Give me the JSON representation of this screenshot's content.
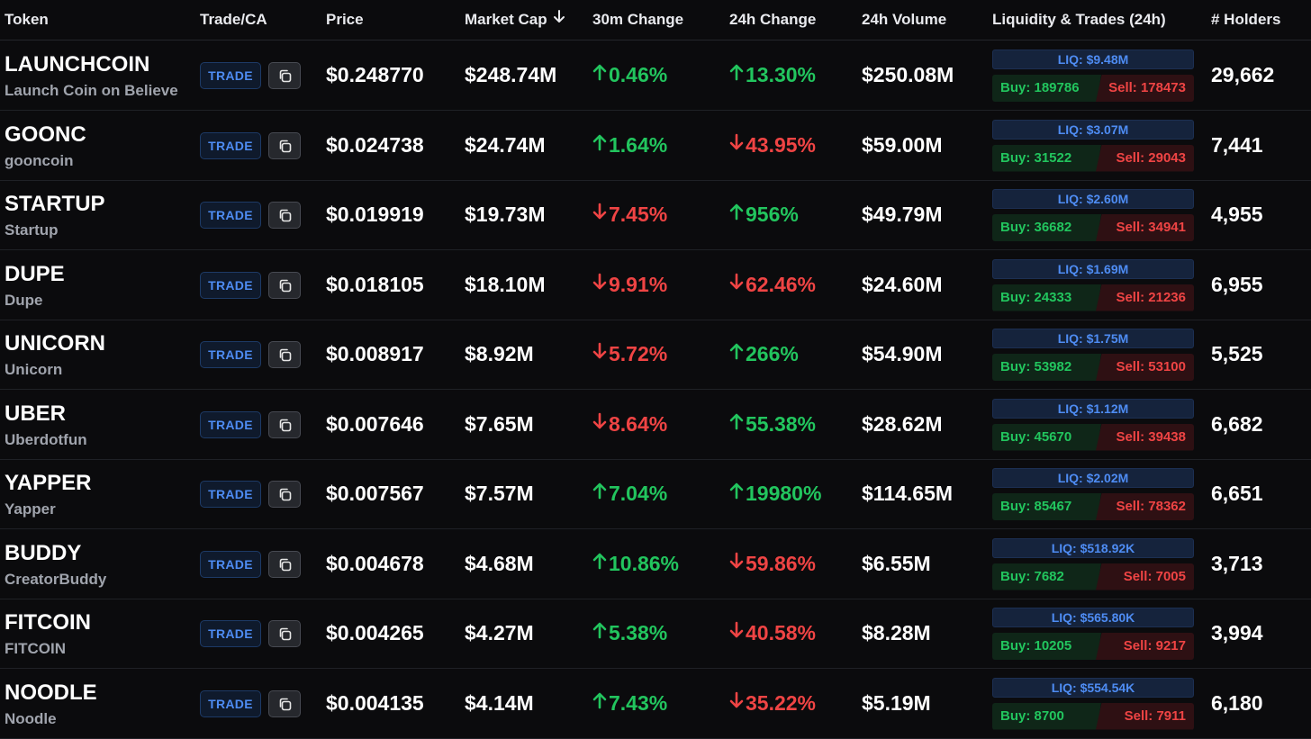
{
  "columns": {
    "token": "Token",
    "trade": "Trade/CA",
    "price": "Price",
    "mcap": "Market Cap",
    "c30": "30m Change",
    "c24": "24h Change",
    "vol": "24h Volume",
    "liq": "Liquidity & Trades (24h)",
    "holders": "# Holders"
  },
  "sort": {
    "column": "Market Cap",
    "direction": "descending"
  },
  "trade_label": "TRADE",
  "colors": {
    "up": "#22c55e",
    "down": "#ef4444",
    "accent": "#4e8cf3",
    "background": "#0b0b0d"
  },
  "rows": [
    {
      "name": "LAUNCHCOIN",
      "sub": "Launch Coin on Believe",
      "price": "$0.248770",
      "mcap": "$248.74M",
      "c30": "0.46%",
      "c30dir": "up",
      "c24": "13.30%",
      "c24dir": "up",
      "vol": "$250.08M",
      "liq": "LIQ: $9.48M",
      "buy": "Buy: 189786",
      "sell": "Sell: 178473",
      "holders": "29,662"
    },
    {
      "name": "GOONC",
      "sub": "gooncoin",
      "price": "$0.024738",
      "mcap": "$24.74M",
      "c30": "1.64%",
      "c30dir": "up",
      "c24": "43.95%",
      "c24dir": "down",
      "vol": "$59.00M",
      "liq": "LIQ: $3.07M",
      "buy": "Buy: 31522",
      "sell": "Sell: 29043",
      "holders": "7,441"
    },
    {
      "name": "STARTUP",
      "sub": "Startup",
      "price": "$0.019919",
      "mcap": "$19.73M",
      "c30": "7.45%",
      "c30dir": "down",
      "c24": "956%",
      "c24dir": "up",
      "vol": "$49.79M",
      "liq": "LIQ: $2.60M",
      "buy": "Buy: 36682",
      "sell": "Sell: 34941",
      "holders": "4,955"
    },
    {
      "name": "DUPE",
      "sub": "Dupe",
      "price": "$0.018105",
      "mcap": "$18.10M",
      "c30": "9.91%",
      "c30dir": "down",
      "c24": "62.46%",
      "c24dir": "down",
      "vol": "$24.60M",
      "liq": "LIQ: $1.69M",
      "buy": "Buy: 24333",
      "sell": "Sell: 21236",
      "holders": "6,955"
    },
    {
      "name": "UNICORN",
      "sub": "Unicorn",
      "price": "$0.008917",
      "mcap": "$8.92M",
      "c30": "5.72%",
      "c30dir": "down",
      "c24": "266%",
      "c24dir": "up",
      "vol": "$54.90M",
      "liq": "LIQ: $1.75M",
      "buy": "Buy: 53982",
      "sell": "Sell: 53100",
      "holders": "5,525"
    },
    {
      "name": "UBER",
      "sub": "Uberdotfun",
      "price": "$0.007646",
      "mcap": "$7.65M",
      "c30": "8.64%",
      "c30dir": "down",
      "c24": "55.38%",
      "c24dir": "up",
      "vol": "$28.62M",
      "liq": "LIQ: $1.12M",
      "buy": "Buy: 45670",
      "sell": "Sell: 39438",
      "holders": "6,682"
    },
    {
      "name": "YAPPER",
      "sub": "Yapper",
      "price": "$0.007567",
      "mcap": "$7.57M",
      "c30": "7.04%",
      "c30dir": "up",
      "c24": "19980%",
      "c24dir": "up",
      "vol": "$114.65M",
      "liq": "LIQ: $2.02M",
      "buy": "Buy: 85467",
      "sell": "Sell: 78362",
      "holders": "6,651"
    },
    {
      "name": "BUDDY",
      "sub": "CreatorBuddy",
      "price": "$0.004678",
      "mcap": "$4.68M",
      "c30": "10.86%",
      "c30dir": "up",
      "c24": "59.86%",
      "c24dir": "down",
      "vol": "$6.55M",
      "liq": "LIQ: $518.92K",
      "buy": "Buy: 7682",
      "sell": "Sell: 7005",
      "holders": "3,713"
    },
    {
      "name": "FITCOIN",
      "sub": "FITCOIN",
      "price": "$0.004265",
      "mcap": "$4.27M",
      "c30": "5.38%",
      "c30dir": "up",
      "c24": "40.58%",
      "c24dir": "down",
      "vol": "$8.28M",
      "liq": "LIQ: $565.80K",
      "buy": "Buy: 10205",
      "sell": "Sell: 9217",
      "holders": "3,994"
    },
    {
      "name": "NOODLE",
      "sub": "Noodle",
      "price": "$0.004135",
      "mcap": "$4.14M",
      "c30": "7.43%",
      "c30dir": "up",
      "c24": "35.22%",
      "c24dir": "down",
      "vol": "$5.19M",
      "liq": "LIQ: $554.54K",
      "buy": "Buy: 8700",
      "sell": "Sell: 7911",
      "holders": "6,180"
    }
  ]
}
